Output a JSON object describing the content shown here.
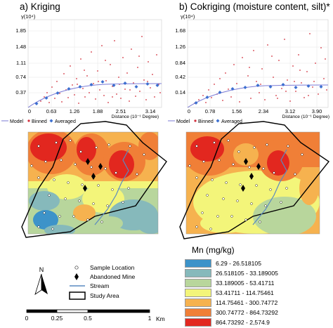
{
  "panels": {
    "a": {
      "title": "a) Kriging",
      "y_unit_label": "γ(10⁴)",
      "y_ticks": [
        "1.85",
        "1.48",
        "1.11",
        "0.74",
        "0.37"
      ],
      "x_ticks": [
        "0",
        "0.63",
        "1.26",
        "1.88",
        "2.51",
        "3.14"
      ],
      "x_axis_label": "Distance (10⁻¹ Degree)"
    },
    "b": {
      "title": "b) Cokriging (moisture content, silt)*",
      "y_unit_label": "γ(10⁴)",
      "y_ticks": [
        "1.68",
        "1.26",
        "0.84",
        "0.42",
        "0.14"
      ],
      "x_ticks": [
        "0",
        "0.78",
        "1.56",
        "2.34",
        "3.12",
        "3.90"
      ],
      "x_axis_label": "Distance (10⁻¹ Degree)"
    }
  },
  "semivariogram_legend": {
    "model": "Model",
    "binned": "Binned",
    "averaged": "Averaged"
  },
  "map_legend": {
    "sample_location": "Sample Location",
    "abandoned_mine": "Abandoned Mine",
    "stream": "Stream",
    "study_area": "Study Area"
  },
  "north_arrow": "N",
  "scale_bar": {
    "ticks": [
      "0",
      "0.25",
      "0.5",
      "1"
    ],
    "unit": "Km"
  },
  "mn_legend": {
    "title": "Mn (mg/kg)",
    "classes": [
      {
        "label": "6.29 - 26.518105",
        "color": "#3d93c9"
      },
      {
        "label": "26.518105 - 33.189005",
        "color": "#86b9bb"
      },
      {
        "label": "33.189005 - 53.41711",
        "color": "#b8d69c"
      },
      {
        "label": "53.41711 - 114.75461",
        "color": "#f3f57a"
      },
      {
        "label": "114.75461 - 300.74772",
        "color": "#f6b24f"
      },
      {
        "label": "300.74772 - 864.73292",
        "color": "#f07f37"
      },
      {
        "label": "864.73292 - 2,574.9",
        "color": "#e2271f"
      }
    ]
  },
  "colors": {
    "model_line": "#7b7bd6",
    "binned_point": "#d22f3c",
    "averaged_point": "#3c6fd0",
    "stream": "#5a8ac0"
  }
}
